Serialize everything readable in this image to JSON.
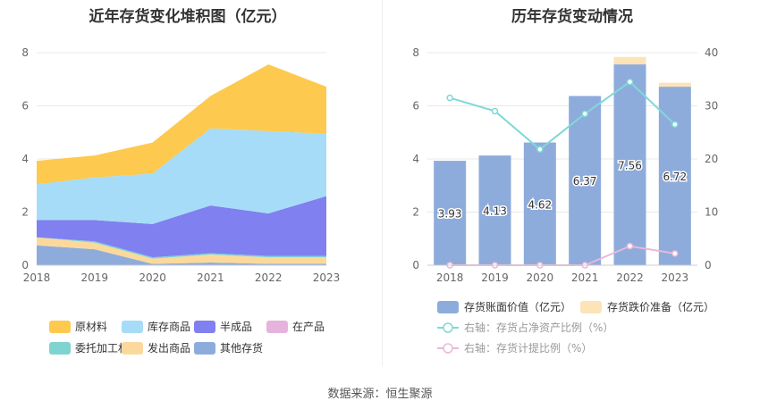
{
  "titles": {
    "left": "近年存货变化堆积图（亿元）",
    "right": "历年存货变动情况"
  },
  "source": "数据来源：恒生聚源",
  "colors": {
    "raw": "#fdc94f",
    "goods": "#a6dcf7",
    "semi": "#8080f0",
    "wip": "#e5b3dc",
    "consign": "#7fd3d0",
    "shipped": "#fbd99c",
    "other": "#8eacdb",
    "bar": "#8eacdb",
    "reserve": "#fde3b8",
    "ratio": "#80d8d8",
    "provision": "#e9b8d8"
  },
  "chart_data": [
    {
      "type": "area",
      "stacked": true,
      "x": [
        "2018",
        "2019",
        "2020",
        "2021",
        "2022",
        "2023"
      ],
      "yticks": [
        "0",
        "2",
        "4",
        "6",
        "8"
      ],
      "ylim": [
        0,
        8
      ],
      "grid": true,
      "legend_position": "bottom",
      "series": [
        {
          "name": "其他存货",
          "key": "other",
          "values": [
            0.75,
            0.6,
            0.05,
            0.1,
            0.05,
            0.05
          ]
        },
        {
          "name": "发出商品",
          "key": "shipped",
          "values": [
            0.3,
            0.25,
            0.2,
            0.3,
            0.25,
            0.25
          ]
        },
        {
          "name": "委托加工材料",
          "key": "consign",
          "values": [
            0.0,
            0.05,
            0.05,
            0.05,
            0.05,
            0.05
          ]
        },
        {
          "name": "在产品",
          "key": "wip",
          "values": [
            0.0,
            0.0,
            0.0,
            0.0,
            0.0,
            0.0
          ]
        },
        {
          "name": "半成品",
          "key": "semi",
          "values": [
            0.65,
            0.8,
            1.25,
            1.8,
            1.6,
            2.25
          ]
        },
        {
          "name": "库存商品",
          "key": "goods",
          "values": [
            1.35,
            1.6,
            1.9,
            2.9,
            3.1,
            2.35
          ]
        },
        {
          "name": "原材料",
          "key": "raw",
          "values": [
            0.88,
            0.83,
            1.17,
            1.22,
            2.51,
            1.77
          ]
        }
      ],
      "legend_rows": [
        [
          "原材料",
          "库存商品",
          "半成品",
          "在产品"
        ],
        [
          "委托加工材料",
          "发出商品",
          "其他存货"
        ]
      ]
    },
    {
      "type": "bar",
      "categories": [
        "2018",
        "2019",
        "2020",
        "2021",
        "2022",
        "2023"
      ],
      "yticks_left": [
        "0",
        "2",
        "4",
        "6",
        "8"
      ],
      "yticks_right": [
        "0",
        "10",
        "20",
        "30",
        "40"
      ],
      "ylim": [
        0,
        8
      ],
      "y2lim": [
        0,
        40
      ],
      "grid": true,
      "legend_position": "bottom",
      "series": [
        {
          "name": "存货账面价值（亿元）",
          "type": "bar",
          "values": [
            3.93,
            4.13,
            4.62,
            6.37,
            7.56,
            6.72
          ],
          "labels": [
            "3.93",
            "4.13",
            "4.62",
            "6.37",
            "7.56",
            "6.72"
          ]
        },
        {
          "name": "存货跌价准备（亿元）",
          "type": "bar-stacked",
          "values": [
            0.0,
            0.0,
            0.0,
            0.0,
            0.28,
            0.15
          ]
        },
        {
          "name": "右轴：存货占净资产比例（%）",
          "type": "line",
          "axis": "right",
          "values": [
            31.5,
            29.0,
            21.8,
            28.5,
            34.5,
            26.5
          ]
        },
        {
          "name": "右轴：存货计提比例（%）",
          "type": "line",
          "axis": "right",
          "values": [
            0.0,
            0.0,
            0.0,
            0.0,
            3.6,
            2.2
          ]
        }
      ]
    }
  ]
}
